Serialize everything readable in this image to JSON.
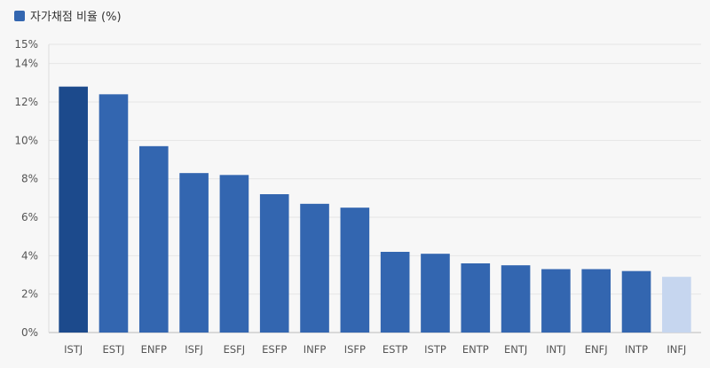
{
  "chart_data": {
    "type": "bar",
    "categories": [
      "ISTJ",
      "ESTJ",
      "ENFP",
      "ISFJ",
      "ESFJ",
      "ESFP",
      "INFP",
      "ISFP",
      "ESTP",
      "ISTP",
      "ENTP",
      "ENTJ",
      "INTJ",
      "ENFJ",
      "INTP",
      "INFJ"
    ],
    "series": [
      {
        "name": "자가채점 비율 (%)",
        "values": [
          12.8,
          12.4,
          9.7,
          8.3,
          8.2,
          7.2,
          6.7,
          6.5,
          4.2,
          4.1,
          3.6,
          3.5,
          3.3,
          3.3,
          3.2,
          2.9
        ],
        "color": "#3366b0"
      }
    ],
    "highlight_colors": {
      "max": "#1c4a8c",
      "min": "#c6d6ef"
    },
    "ylim": [
      0,
      15
    ],
    "yticks": [
      0,
      2,
      4,
      6,
      8,
      10,
      12,
      14,
      15
    ],
    "ytick_labels": [
      "0%",
      "2%",
      "4%",
      "6%",
      "8%",
      "10%",
      "12%",
      "14%",
      "15%"
    ],
    "grid": true,
    "legend": {
      "position": "top-left"
    }
  }
}
